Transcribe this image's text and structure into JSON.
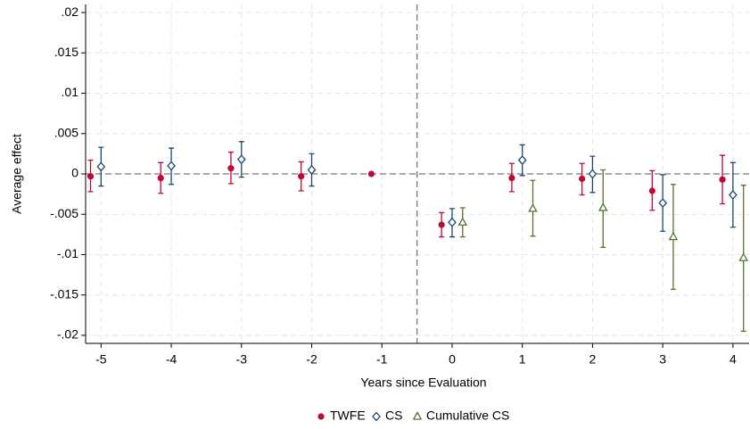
{
  "chart_data": {
    "type": "errorbar",
    "xlabel": "Years since Evaluation",
    "ylabel": "Average effect",
    "x": [
      -5,
      -4,
      -3,
      -2,
      -1,
      0,
      1,
      2,
      3,
      4
    ],
    "xlim": [
      -5.22,
      4.23
    ],
    "xticks": [
      -5,
      -4,
      -3,
      -2,
      -1,
      0,
      1,
      2,
      3,
      4
    ],
    "ylim": [
      -0.021,
      0.021
    ],
    "yticks": [
      {
        "value": 0.02,
        "label": ".02"
      },
      {
        "value": 0.015,
        "label": ".015"
      },
      {
        "value": 0.01,
        "label": ".01"
      },
      {
        "value": 0.005,
        "label": ".005"
      },
      0,
      {
        "value": -0.005,
        "label": "-.005"
      },
      {
        "value": -0.01,
        "label": "-.01"
      },
      {
        "value": -0.015,
        "label": "-.015"
      },
      {
        "value": -0.02,
        "label": "-.02"
      }
    ],
    "grid": true,
    "xline": -0.5,
    "yline": 0,
    "legend": "bottom",
    "series": [
      {
        "name": "TWFE",
        "color": "#c10534",
        "marker": "circle",
        "values": [
          -0.0003,
          -0.0005,
          0.0007,
          -0.0003,
          0,
          -0.0063,
          -0.0005,
          -0.0006,
          -0.0021,
          -0.0007
        ],
        "lower": [
          -0.0022,
          -0.0024,
          -0.0012,
          -0.0021,
          null,
          -0.0078,
          -0.0022,
          -0.0026,
          -0.0045,
          -0.0037
        ],
        "upper": [
          0.0017,
          0.0014,
          0.0027,
          0.0015,
          null,
          -0.0048,
          0.0013,
          0.0013,
          0.0004,
          0.0023
        ]
      },
      {
        "name": "CS",
        "color": "#1a476f",
        "marker": "diamond",
        "values": [
          0.0009,
          0.001,
          0.0018,
          0.0005,
          null,
          -0.006,
          0.0017,
          0,
          -0.0036,
          -0.0026
        ],
        "lower": [
          -0.0015,
          -0.0013,
          -0.0004,
          -0.0015,
          null,
          -0.0078,
          -0.0002,
          -0.0023,
          -0.0071,
          -0.0066
        ],
        "upper": [
          0.0033,
          0.0032,
          0.004,
          0.0025,
          null,
          -0.0043,
          0.0036,
          0.0022,
          -0.0001,
          0.0014
        ]
      },
      {
        "name": "Cumulative CS",
        "color": "#55752f",
        "marker": "triangle",
        "values": [
          null,
          null,
          null,
          null,
          null,
          -0.006,
          -0.0043,
          -0.0042,
          -0.0078,
          -0.0104
        ],
        "lower": [
          null,
          null,
          null,
          null,
          null,
          -0.0078,
          -0.0077,
          -0.0091,
          -0.0143,
          -0.0195
        ],
        "upper": [
          null,
          null,
          null,
          null,
          null,
          -0.0042,
          -0.0008,
          0.0005,
          -0.0013,
          -0.0014
        ]
      }
    ]
  }
}
